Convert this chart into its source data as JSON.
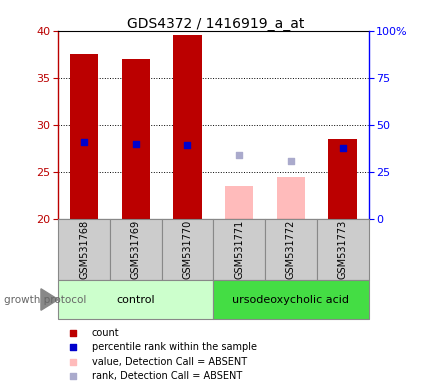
{
  "title": "GDS4372 / 1416919_a_at",
  "samples": [
    "GSM531768",
    "GSM531769",
    "GSM531770",
    "GSM531771",
    "GSM531772",
    "GSM531773"
  ],
  "bar_bottom": 20,
  "count_values": [
    37.5,
    37.0,
    39.5,
    null,
    null,
    28.5
  ],
  "count_absent_values": [
    null,
    null,
    null,
    23.5,
    24.5,
    null
  ],
  "percentile_values": [
    28.2,
    28.0,
    27.9,
    null,
    null,
    27.5
  ],
  "percentile_absent_values": [
    null,
    null,
    null,
    26.8,
    26.2,
    null
  ],
  "ylim": [
    20,
    40
  ],
  "y2lim": [
    0,
    100
  ],
  "yticks": [
    20,
    25,
    30,
    35,
    40
  ],
  "y2ticks": [
    0,
    25,
    50,
    75,
    100
  ],
  "y2tick_labels": [
    "0",
    "25",
    "50",
    "75",
    "100%"
  ],
  "red_color": "#bb0000",
  "pink_color": "#ffbbbb",
  "blue_color": "#0000cc",
  "blue_absent_color": "#aaaacc",
  "control_group_color": "#ccffcc",
  "treat_group_color": "#44dd44",
  "sample_box_color": "#cccccc",
  "bar_width": 0.55,
  "dot_size": 18,
  "legend_items": [
    {
      "label": "count",
      "color": "#bb0000"
    },
    {
      "label": "percentile rank within the sample",
      "color": "#0000cc"
    },
    {
      "label": "value, Detection Call = ABSENT",
      "color": "#ffbbbb"
    },
    {
      "label": "rank, Detection Call = ABSENT",
      "color": "#aaaacc"
    }
  ]
}
